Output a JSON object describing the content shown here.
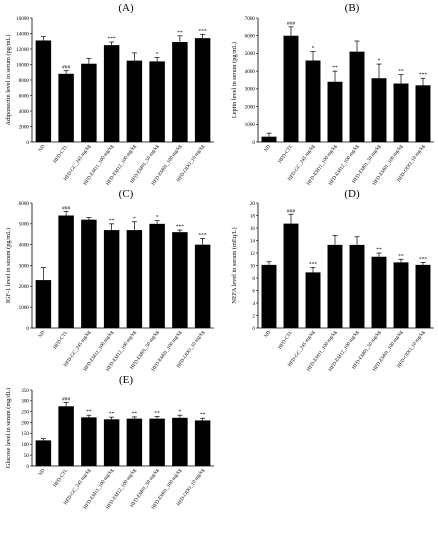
{
  "chart_data": [
    {
      "panel": "(A)",
      "type": "bar",
      "categories": [
        "ND",
        "HFD-CTL",
        "HFD-GC_245 mg/kg",
        "HFD-EM11_100 mg/kg",
        "HFD-EM12_100 mg/kg",
        "HFD-EM01_50 mg/kg",
        "HFD-EM01_100 mg/kg",
        "HFD-ODO_10 mg/kg"
      ],
      "values": [
        13100,
        8800,
        10100,
        12500,
        10500,
        10400,
        12900,
        13400
      ],
      "errors": [
        500,
        400,
        700,
        400,
        1000,
        500,
        800,
        500
      ],
      "significance": [
        "",
        "###",
        "",
        "***",
        "",
        "*",
        "**",
        "***"
      ],
      "ylabel": "Adiponectin level in serum (pg/mL)",
      "ylim": [
        0,
        16000
      ],
      "yticks": [
        "0",
        "2000",
        "4000",
        "6000",
        "8000",
        "10000",
        "12000",
        "14000",
        "16000"
      ],
      "yticks_values": [
        0,
        2000,
        4000,
        6000,
        8000,
        10000,
        12000,
        14000,
        16000
      ]
    },
    {
      "panel": "(B)",
      "type": "bar",
      "categories": [
        "ND",
        "HFD-CTL",
        "HFD-GC_245 mg/kg",
        "HFD-EM11_100 mg/kg",
        "HFD-EM12_100 mg/kg",
        "HFD-EM01_50 mg/kg",
        "HFD-EM01_100 mg/kg",
        "HFD-ODO_10 mg/kg"
      ],
      "values": [
        300,
        6000,
        4600,
        3400,
        5100,
        3600,
        3300,
        3200
      ],
      "errors": [
        200,
        500,
        500,
        600,
        600,
        800,
        500,
        400
      ],
      "significance": [
        "",
        "###",
        "*",
        "**",
        "",
        "*",
        "**",
        "***"
      ],
      "ylabel": "Leptin level in serum (pg/mL)",
      "ylim": [
        0,
        7000
      ],
      "yticks": [
        "0",
        "1000",
        "2000",
        "3000",
        "4000",
        "5000",
        "6000",
        "7000"
      ],
      "yticks_values": [
        0,
        1000,
        2000,
        3000,
        4000,
        5000,
        6000,
        7000
      ]
    },
    {
      "panel": "(C)",
      "type": "bar",
      "categories": [
        "ND",
        "HFD-CTL",
        "HFD-GC_245 mg/kg",
        "HFD-EM11_100 mg/kg",
        "HFD-EM12_100 mg/kg",
        "HFD-EM01_50 mg/kg",
        "HFD-EM01_100 mg/kg",
        "HFD-ODO_10 mg/kg"
      ],
      "values": [
        2300,
        5400,
        5200,
        4700,
        4700,
        5000,
        4600,
        4000
      ],
      "errors": [
        600,
        200,
        100,
        300,
        400,
        150,
        100,
        300
      ],
      "significance": [
        "",
        "###",
        "",
        "**",
        "*",
        "*",
        "***",
        "***"
      ],
      "ylabel": "IGF-1 level in serum (pg/mL)",
      "ylim": [
        0,
        6000
      ],
      "yticks": [
        "0",
        "1000",
        "2000",
        "3000",
        "4000",
        "5000",
        "6000"
      ],
      "yticks_values": [
        0,
        1000,
        2000,
        3000,
        4000,
        5000,
        6000
      ]
    },
    {
      "panel": "(D)",
      "type": "bar",
      "categories": [
        "ND",
        "HFD-CTL",
        "HFD-GC_245 mg/kg",
        "HFD-EM11_100 mg/kg",
        "HFD-EM12_100 mg/kg",
        "HFD-EM01_50 mg/kg",
        "HFD-EM01_100 mg/kg",
        "HFD-ODO_10 mg/kg"
      ],
      "values": [
        10.1,
        16.7,
        8.9,
        13.3,
        13.3,
        11.4,
        10.5,
        10.1
      ],
      "errors": [
        0.5,
        1.5,
        0.8,
        1.5,
        1.3,
        0.6,
        0.5,
        0.4
      ],
      "significance": [
        "",
        "###",
        "***",
        "",
        "",
        "**",
        "**",
        "***"
      ],
      "ylabel": "NEFA level in serum (mEq/L)",
      "ylim": [
        0,
        20
      ],
      "yticks": [
        "0",
        "2",
        "4",
        "6",
        "8",
        "10",
        "12",
        "14",
        "16",
        "18",
        "20"
      ],
      "yticks_values": [
        0,
        2,
        4,
        6,
        8,
        10,
        12,
        14,
        16,
        18,
        20
      ]
    },
    {
      "panel": "(E)",
      "type": "bar",
      "categories": [
        "ND",
        "HFD-CTL",
        "HFD-GC_245 mg/kg",
        "HFD-EM11_100 mg/kg",
        "HFD-EM12_100 mg/kg",
        "HFD-EM01_50 mg/kg",
        "HFD-EM01_100 mg/kg",
        "HFD-ODO_10 mg/kg"
      ],
      "values": [
        118,
        275,
        224,
        215,
        218,
        218,
        222,
        210
      ],
      "errors": [
        8,
        18,
        10,
        10,
        8,
        10,
        12,
        10
      ],
      "significance": [
        "",
        "###",
        "**",
        "**",
        "**",
        "**",
        "*",
        "**"
      ],
      "ylabel": "Glucose level in serum (mg/dL)",
      "ylim": [
        0,
        350
      ],
      "yticks": [
        "0",
        "50",
        "100",
        "150",
        "200",
        "250",
        "300",
        "350"
      ],
      "yticks_values": [
        0,
        50,
        100,
        150,
        200,
        250,
        300,
        350
      ]
    }
  ]
}
